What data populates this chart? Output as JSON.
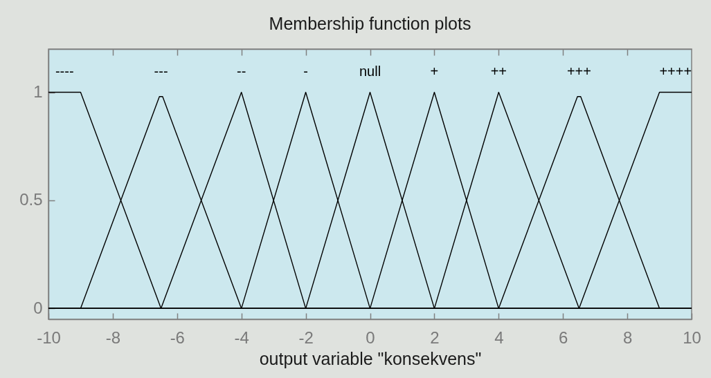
{
  "chart_data": {
    "type": "line",
    "title": "Membership function plots",
    "xlabel": "output variable \"konsekvens\"",
    "xlim": [
      -10,
      10
    ],
    "ylim": [
      -0.05,
      1.2
    ],
    "xticks": [
      -10,
      -8,
      -6,
      -4,
      -2,
      0,
      2,
      4,
      6,
      8,
      10
    ],
    "yticks": [
      0,
      0.5,
      1
    ],
    "line_style": "solid",
    "series": [
      {
        "name": "----",
        "color": "#000000",
        "x": [
          -10,
          -9,
          -6.5,
          10
        ],
        "values": [
          1,
          1,
          0,
          0
        ]
      },
      {
        "name": "---",
        "color": "#000000",
        "x": [
          -10,
          -9,
          -6.55,
          -6.45,
          -4,
          10
        ],
        "values": [
          0,
          0,
          0.98,
          0.98,
          0,
          0
        ]
      },
      {
        "name": "--",
        "color": "#000000",
        "x": [
          -10,
          -6.5,
          -4,
          -2,
          10
        ],
        "values": [
          0,
          0,
          1,
          0,
          0
        ]
      },
      {
        "name": "-",
        "color": "#000000",
        "x": [
          -10,
          -4,
          -2,
          0,
          10
        ],
        "values": [
          0,
          0,
          1,
          0,
          0
        ]
      },
      {
        "name": "null",
        "color": "#000000",
        "x": [
          -10,
          -2,
          0,
          2,
          10
        ],
        "values": [
          0,
          0,
          1,
          0,
          0
        ]
      },
      {
        "name": "+",
        "color": "#000000",
        "x": [
          -10,
          0,
          2,
          4,
          10
        ],
        "values": [
          0,
          0,
          1,
          0,
          0
        ]
      },
      {
        "name": "++",
        "color": "#000000",
        "x": [
          -10,
          2,
          4,
          6.5,
          10
        ],
        "values": [
          0,
          0,
          1,
          0,
          0
        ]
      },
      {
        "name": "+++",
        "color": "#000000",
        "x": [
          -10,
          4,
          6.45,
          6.55,
          9,
          10
        ],
        "values": [
          0,
          0,
          0.98,
          0.98,
          0,
          0
        ]
      },
      {
        "name": "++++",
        "color": "#000000",
        "x": [
          -10,
          6.5,
          9,
          10
        ],
        "values": [
          0,
          0,
          1,
          1
        ]
      }
    ]
  }
}
